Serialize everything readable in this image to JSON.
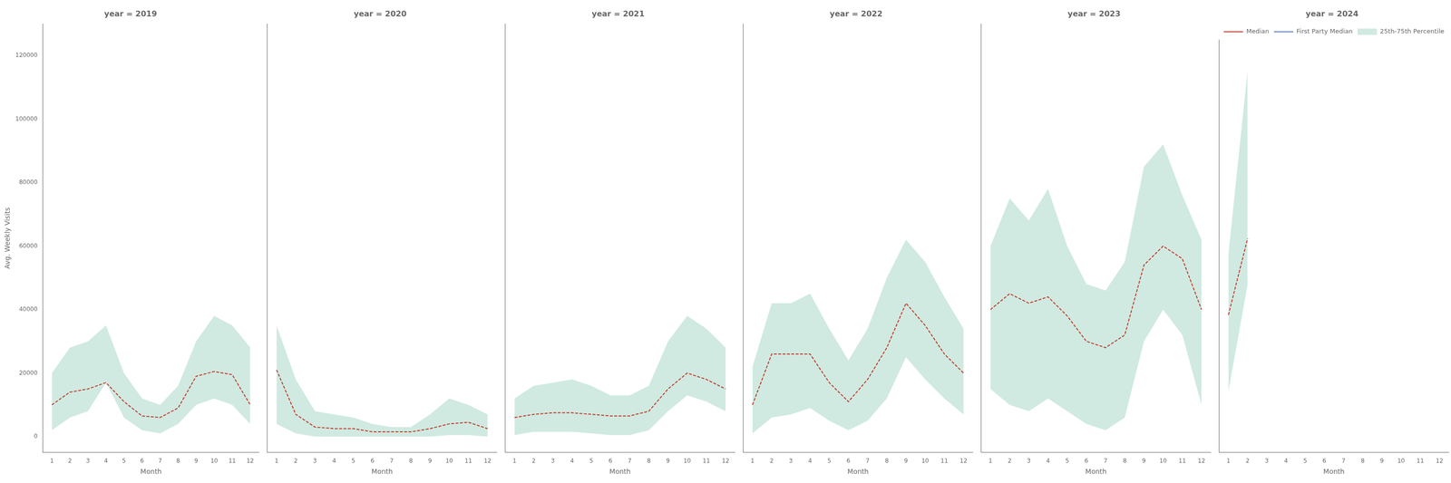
{
  "chart_data": [
    {
      "type": "line",
      "title": "year = 2019",
      "xlabel": "Month",
      "ylabel": "Avg. Weekly Visits",
      "x": [
        1,
        2,
        3,
        4,
        5,
        6,
        7,
        8,
        9,
        10,
        11,
        12
      ],
      "xlim": [
        0.5,
        12.5
      ],
      "xticks": [
        1,
        2,
        3,
        4,
        5,
        6,
        7,
        8,
        9,
        10,
        11,
        12
      ],
      "ylim": [
        -5000,
        130000
      ],
      "yticks": [
        0,
        20000,
        40000,
        60000,
        80000,
        100000,
        120000
      ],
      "grid": false,
      "series": [
        {
          "name": "Median",
          "color": "#c0392b",
          "line_style": "dashed",
          "values": [
            10000,
            14000,
            15000,
            17000,
            11000,
            6500,
            6000,
            9000,
            19000,
            20500,
            19500,
            10000
          ]
        },
        {
          "name": "25th-75th Percentile",
          "type": "area",
          "color": "#aad8c8",
          "lower": [
            2000,
            6000,
            8000,
            17000,
            6000,
            2000,
            1000,
            4000,
            10000,
            12000,
            10000,
            4000
          ],
          "upper": [
            20000,
            28000,
            30000,
            35000,
            20000,
            12000,
            10000,
            16000,
            30000,
            38000,
            35000,
            28000
          ]
        }
      ]
    },
    {
      "type": "line",
      "title": "year = 2020",
      "xlabel": "Month",
      "x": [
        1,
        2,
        3,
        4,
        5,
        6,
        7,
        8,
        9,
        10,
        11,
        12
      ],
      "xlim": [
        0.5,
        12.5
      ],
      "xticks": [
        1,
        2,
        3,
        4,
        5,
        6,
        7,
        8,
        9,
        10,
        11,
        12
      ],
      "ylim": [
        -5000,
        130000
      ],
      "yticks": [
        0,
        20000,
        40000,
        60000,
        80000,
        100000,
        120000
      ],
      "grid": false,
      "tick_labels": "x",
      "series": [
        {
          "name": "Median",
          "color": "#c0392b",
          "line_style": "dashed",
          "values": [
            21000,
            7000,
            3000,
            2500,
            2500,
            1500,
            1500,
            1500,
            2500,
            4000,
            4500,
            2500
          ]
        },
        {
          "name": "25th-75th Percentile",
          "type": "area",
          "color": "#aad8c8",
          "lower": [
            4000,
            1000,
            0,
            0,
            0,
            0,
            0,
            0,
            0,
            500,
            500,
            0
          ],
          "upper": [
            35000,
            18000,
            8000,
            7000,
            6000,
            4000,
            3000,
            3000,
            7000,
            12000,
            10000,
            7000
          ]
        }
      ]
    },
    {
      "type": "line",
      "title": "year = 2021",
      "xlabel": "Month",
      "x": [
        1,
        2,
        3,
        4,
        5,
        6,
        7,
        8,
        9,
        10,
        11,
        12
      ],
      "xlim": [
        0.5,
        12.5
      ],
      "xticks": [
        1,
        2,
        3,
        4,
        5,
        6,
        7,
        8,
        9,
        10,
        11,
        12
      ],
      "ylim": [
        -5000,
        130000
      ],
      "yticks": [
        0,
        20000,
        40000,
        60000,
        80000,
        100000,
        120000
      ],
      "grid": false,
      "tick_labels": "x",
      "series": [
        {
          "name": "Median",
          "color": "#c0392b",
          "line_style": "dashed",
          "values": [
            6000,
            7000,
            7500,
            7500,
            7000,
            6500,
            6500,
            8000,
            15000,
            20000,
            18000,
            15000
          ]
        },
        {
          "name": "25th-75th Percentile",
          "type": "area",
          "color": "#aad8c8",
          "lower": [
            500,
            1500,
            1500,
            1500,
            1000,
            500,
            500,
            2000,
            8000,
            13000,
            11000,
            8000
          ],
          "upper": [
            12000,
            16000,
            17000,
            18000,
            16000,
            13000,
            13000,
            16000,
            30000,
            38000,
            34000,
            28000
          ]
        }
      ]
    },
    {
      "type": "line",
      "title": "year = 2022",
      "xlabel": "Month",
      "x": [
        1,
        2,
        3,
        4,
        5,
        6,
        7,
        8,
        9,
        10,
        11,
        12
      ],
      "xlim": [
        0.5,
        12.5
      ],
      "xticks": [
        1,
        2,
        3,
        4,
        5,
        6,
        7,
        8,
        9,
        10,
        11,
        12
      ],
      "ylim": [
        -5000,
        130000
      ],
      "yticks": [
        0,
        20000,
        40000,
        60000,
        80000,
        100000,
        120000
      ],
      "grid": false,
      "tick_labels": "x",
      "series": [
        {
          "name": "Median",
          "color": "#c0392b",
          "line_style": "dashed",
          "values": [
            10000,
            26000,
            26000,
            26000,
            17000,
            11000,
            18000,
            28000,
            42000,
            35000,
            26000,
            20000
          ]
        },
        {
          "name": "25th-75th Percentile",
          "type": "area",
          "color": "#aad8c8",
          "lower": [
            1000,
            6000,
            7000,
            9000,
            5000,
            2000,
            5000,
            12000,
            25000,
            18000,
            12000,
            7000
          ],
          "upper": [
            22000,
            42000,
            42000,
            45000,
            34000,
            24000,
            34000,
            50000,
            62000,
            55000,
            44000,
            34000
          ]
        }
      ]
    },
    {
      "type": "line",
      "title": "year = 2023",
      "xlabel": "Month",
      "x": [
        1,
        2,
        3,
        4,
        5,
        6,
        7,
        8,
        9,
        10,
        11,
        12
      ],
      "xlim": [
        0.5,
        12.5
      ],
      "xticks": [
        1,
        2,
        3,
        4,
        5,
        6,
        7,
        8,
        9,
        10,
        11,
        12
      ],
      "ylim": [
        -5000,
        130000
      ],
      "yticks": [
        0,
        20000,
        40000,
        60000,
        80000,
        100000,
        120000
      ],
      "grid": false,
      "tick_labels": "x",
      "series": [
        {
          "name": "Median",
          "color": "#c0392b",
          "line_style": "dashed",
          "values": [
            40000,
            45000,
            42000,
            44000,
            38000,
            30000,
            28000,
            32000,
            54000,
            60000,
            56000,
            40000
          ]
        },
        {
          "name": "25th-75th Percentile",
          "type": "area",
          "color": "#aad8c8",
          "lower": [
            15000,
            10000,
            8000,
            12000,
            8000,
            4000,
            2000,
            6000,
            30000,
            40000,
            32000,
            10000
          ],
          "upper": [
            60000,
            75000,
            68000,
            78000,
            60000,
            48000,
            46000,
            55000,
            85000,
            92000,
            76000,
            62000
          ]
        }
      ]
    },
    {
      "type": "line",
      "title": "year = 2024",
      "xlabel": "Month",
      "x": [
        1,
        2,
        3,
        4,
        5,
        6,
        7,
        8,
        9,
        10,
        11,
        12
      ],
      "xlim": [
        0.5,
        12.5
      ],
      "xticks": [
        1,
        2,
        3,
        4,
        5,
        6,
        7,
        8,
        9,
        10,
        11,
        12
      ],
      "ylim": [
        -5000,
        130000
      ],
      "yticks": [
        0,
        20000,
        40000,
        60000,
        80000,
        100000,
        120000
      ],
      "grid": false,
      "tick_labels": "x",
      "legend": "upper right",
      "series": [
        {
          "name": "Median",
          "color": "#c0392b",
          "line_style": "dashed",
          "values": [
            40000,
            65000,
            null,
            null,
            null,
            null,
            null,
            null,
            null,
            null,
            null,
            null
          ]
        },
        {
          "name": "First Party Median",
          "color": "#5b7fc4",
          "line_style": "dashed",
          "values": [
            null,
            null,
            null,
            null,
            null,
            null,
            null,
            null,
            null,
            null,
            null,
            null
          ]
        },
        {
          "name": "25th-75th Percentile",
          "type": "area",
          "color": "#aad8c8",
          "lower": [
            15000,
            50000,
            null,
            null,
            null,
            null,
            null,
            null,
            null,
            null,
            null,
            null
          ],
          "upper": [
            60000,
            120000,
            null,
            null,
            null,
            null,
            null,
            null,
            null,
            null,
            null,
            null
          ]
        }
      ]
    }
  ]
}
